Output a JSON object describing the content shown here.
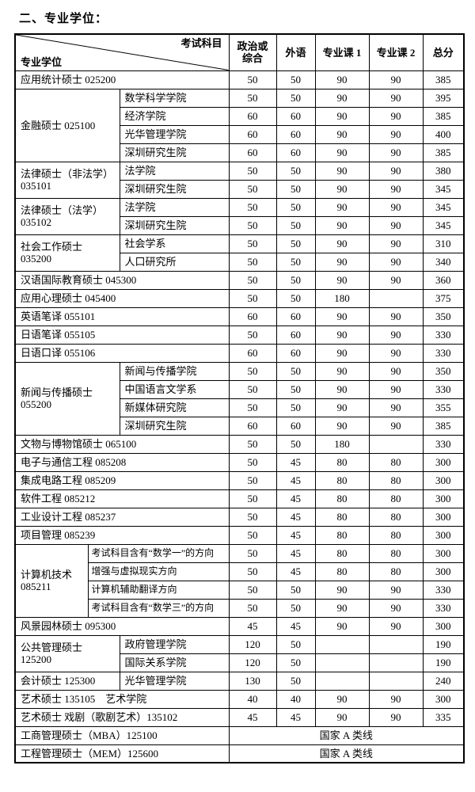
{
  "page": {
    "title": "二、专业学位："
  },
  "table": {
    "header": {
      "diagonal_top": "考试科目",
      "diagonal_bottom": "专业学位",
      "columns": [
        "政治或\n综合",
        "外语",
        "专业课 1",
        "专业课 2",
        "总分"
      ]
    },
    "rows": [
      {
        "type": "simple",
        "label": "应用统计硕士 025200",
        "scores": [
          "50",
          "50",
          "90",
          "90",
          "385"
        ]
      },
      {
        "type": "group",
        "split": "normal",
        "rowspan": 4,
        "label": "金融硕士 025100",
        "sublabel": "数学科学学院",
        "scores": [
          "50",
          "50",
          "90",
          "90",
          "395"
        ]
      },
      {
        "type": "sub",
        "split": "normal",
        "sublabel": "经济学院",
        "scores": [
          "60",
          "60",
          "90",
          "90",
          "385"
        ]
      },
      {
        "type": "sub",
        "split": "normal",
        "sublabel": "光华管理学院",
        "scores": [
          "60",
          "60",
          "90",
          "90",
          "400"
        ]
      },
      {
        "type": "sub",
        "split": "normal",
        "sublabel": "深圳研究生院",
        "scores": [
          "60",
          "60",
          "90",
          "90",
          "385"
        ]
      },
      {
        "type": "group",
        "split": "normal",
        "rowspan": 2,
        "label": "法律硕士（非法学）\n035101",
        "sublabel": "法学院",
        "scores": [
          "50",
          "50",
          "90",
          "90",
          "380"
        ]
      },
      {
        "type": "sub",
        "split": "normal",
        "sublabel": "深圳研究生院",
        "scores": [
          "50",
          "50",
          "90",
          "90",
          "345"
        ]
      },
      {
        "type": "group",
        "split": "normal",
        "rowspan": 2,
        "label": "法律硕士（法学）\n035102",
        "sublabel": "法学院",
        "scores": [
          "50",
          "50",
          "90",
          "90",
          "345"
        ]
      },
      {
        "type": "sub",
        "split": "normal",
        "sublabel": "深圳研究生院",
        "scores": [
          "50",
          "50",
          "90",
          "90",
          "345"
        ]
      },
      {
        "type": "group",
        "split": "normal",
        "rowspan": 2,
        "label": "社会工作硕士\n035200",
        "sublabel": "社会学系",
        "scores": [
          "50",
          "50",
          "90",
          "90",
          "310"
        ]
      },
      {
        "type": "sub",
        "split": "normal",
        "sublabel": "人口研究所",
        "scores": [
          "50",
          "50",
          "90",
          "90",
          "340"
        ]
      },
      {
        "type": "simple",
        "label": "汉语国际教育硕士 045300",
        "scores": [
          "50",
          "50",
          "90",
          "90",
          "360"
        ]
      },
      {
        "type": "simple",
        "label": "应用心理硕士 045400",
        "scores": [
          "50",
          "50",
          "180",
          "",
          "375"
        ]
      },
      {
        "type": "simple",
        "label": "英语笔译 055101",
        "scores": [
          "60",
          "60",
          "90",
          "90",
          "350"
        ]
      },
      {
        "type": "simple",
        "label": "日语笔译 055105",
        "scores": [
          "50",
          "60",
          "90",
          "90",
          "330"
        ]
      },
      {
        "type": "simple",
        "label": "日语口译 055106",
        "scores": [
          "60",
          "60",
          "90",
          "90",
          "330"
        ]
      },
      {
        "type": "group",
        "split": "normal",
        "rowspan": 4,
        "label": "新闻与传播硕士\n055200",
        "sublabel": "新闻与传播学院",
        "scores": [
          "50",
          "50",
          "90",
          "90",
          "350"
        ]
      },
      {
        "type": "sub",
        "split": "normal",
        "sublabel": "中国语言文学系",
        "scores": [
          "50",
          "50",
          "90",
          "90",
          "330"
        ]
      },
      {
        "type": "sub",
        "split": "normal",
        "sublabel": "新媒体研究院",
        "scores": [
          "50",
          "50",
          "90",
          "90",
          "355"
        ]
      },
      {
        "type": "sub",
        "split": "normal",
        "sublabel": "深圳研究生院",
        "scores": [
          "60",
          "60",
          "90",
          "90",
          "385"
        ]
      },
      {
        "type": "simple",
        "label": "文物与博物馆硕士 065100",
        "scores": [
          "50",
          "50",
          "180",
          "",
          "330"
        ]
      },
      {
        "type": "simple",
        "label": "电子与通信工程 085208",
        "scores": [
          "50",
          "45",
          "80",
          "80",
          "300"
        ]
      },
      {
        "type": "simple",
        "label": "集成电路工程 085209",
        "scores": [
          "50",
          "45",
          "80",
          "80",
          "300"
        ]
      },
      {
        "type": "simple",
        "label": "软件工程 085212",
        "scores": [
          "50",
          "45",
          "80",
          "80",
          "300"
        ]
      },
      {
        "type": "simple",
        "label": "工业设计工程 085237",
        "scores": [
          "50",
          "45",
          "80",
          "80",
          "300"
        ]
      },
      {
        "type": "simple",
        "label": "项目管理 085239",
        "scores": [
          "50",
          "45",
          "80",
          "80",
          "300"
        ]
      },
      {
        "type": "group",
        "split": "narrow",
        "rowspan": 4,
        "label": "计算机技术\n085211",
        "sublabel": "考试科目含有“数学一”的方向",
        "scores": [
          "50",
          "45",
          "80",
          "80",
          "300"
        ]
      },
      {
        "type": "sub",
        "split": "narrow",
        "sublabel": "增强与虚拟现实方向",
        "scores": [
          "50",
          "45",
          "80",
          "80",
          "300"
        ]
      },
      {
        "type": "sub",
        "split": "narrow",
        "sublabel": "计算机辅助翻译方向",
        "scores": [
          "50",
          "50",
          "90",
          "90",
          "330"
        ]
      },
      {
        "type": "sub",
        "split": "narrow",
        "sublabel": "考试科目含有“数学三”的方向",
        "scores": [
          "50",
          "50",
          "90",
          "90",
          "330"
        ]
      },
      {
        "type": "simple",
        "label": "风景园林硕士 095300",
        "scores": [
          "45",
          "45",
          "90",
          "90",
          "300"
        ]
      },
      {
        "type": "group",
        "split": "normal",
        "rowspan": 2,
        "label": "公共管理硕士\n125200",
        "sublabel": "政府管理学院",
        "scores": [
          "120",
          "50",
          "",
          "",
          "190"
        ]
      },
      {
        "type": "sub",
        "split": "normal",
        "sublabel": "国际关系学院",
        "scores": [
          "120",
          "50",
          "",
          "",
          "190"
        ]
      },
      {
        "type": "group",
        "split": "normal",
        "rowspan": 1,
        "label": "会计硕士 125300",
        "sublabel": "光华管理学院",
        "scores": [
          "130",
          "50",
          "",
          "",
          "240"
        ]
      },
      {
        "type": "simple",
        "label": "艺术硕士 135105　艺术学院",
        "scores": [
          "40",
          "40",
          "90",
          "90",
          "300"
        ]
      },
      {
        "type": "simple",
        "label": "艺术硕士 戏剧（歌剧艺术）135102",
        "scores": [
          "45",
          "45",
          "90",
          "90",
          "335"
        ]
      },
      {
        "type": "national",
        "label": "工商管理硕士（MBA）125100",
        "note": "国家 A 类线"
      },
      {
        "type": "national",
        "label": "工程管理硕士（MEM）125600",
        "note": "国家 A 类线"
      }
    ]
  }
}
